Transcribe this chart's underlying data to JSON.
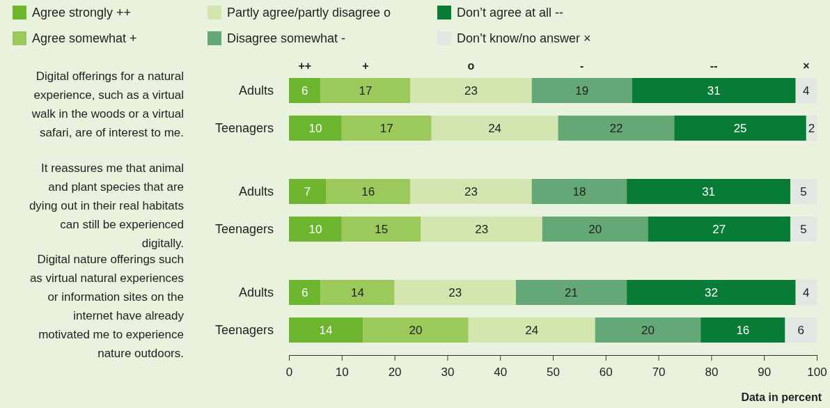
{
  "chart_data": {
    "type": "bar",
    "orientation": "horizontal",
    "stacked": true,
    "data_labels": true,
    "legend": "top",
    "grid": false,
    "categories": [
      "Adults",
      "Teenagers",
      "Adults",
      "Teenagers",
      "Adults",
      "Teenagers"
    ],
    "series": [
      {
        "name": "Agree strongly ++",
        "color": "#6db52e",
        "values": [
          6,
          10,
          7,
          10,
          6,
          14
        ]
      },
      {
        "name": "Agree somewhat +",
        "color": "#9cc95b",
        "values": [
          17,
          17,
          16,
          15,
          14,
          20
        ]
      },
      {
        "name": "Partly agree/partly disagree o",
        "color": "#d3e6af",
        "values": [
          23,
          24,
          23,
          23,
          23,
          24
        ]
      },
      {
        "name": "Disagree somewhat -",
        "color": "#65a877",
        "values": [
          19,
          22,
          18,
          20,
          21,
          20
        ]
      },
      {
        "name": "Don’t agree at all --",
        "color": "#087b36",
        "values": [
          31,
          25,
          31,
          27,
          32,
          16
        ]
      },
      {
        "name": "Don’t know/no answer ×",
        "color": "#e3e7e3",
        "values": [
          4,
          2,
          5,
          5,
          4,
          6
        ]
      }
    ],
    "xlim": [
      0,
      100
    ],
    "xticks": [
      0,
      10,
      20,
      30,
      40,
      50,
      60,
      70,
      80,
      90,
      100
    ],
    "xlabel": "Data in percent",
    "annotations": [
      "Digital offerings for a natural experience, such as a virtual walk in the woods or a virtual safari, are of interest to me.",
      "It reassures me that animal and plant species that are dying out in their real habitats can still be experienced digitally.",
      "Digital nature offerings such as virtual natural experiences or information sites on the internet have already motivated me to experience nature outdoors.",
      "++",
      "+",
      "o",
      "-",
      "--",
      "×"
    ]
  }
}
